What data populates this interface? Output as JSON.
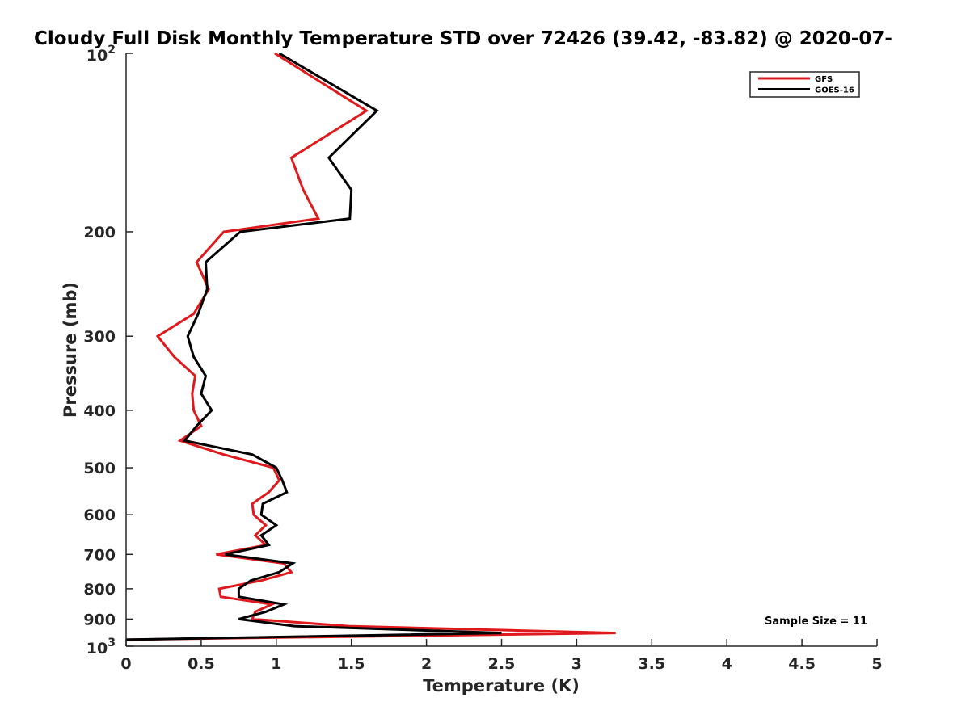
{
  "chart_data": {
    "type": "line",
    "title": "Cloudy Full Disk Monthly Temperature STD over 72426 (39.42, -83.82) @ 2020-07-",
    "xlabel": "Temperature (K)",
    "ylabel": "Pressure (mb)",
    "xlim": [
      0,
      5
    ],
    "ylim": [
      100,
      1000
    ],
    "y_scale": "log",
    "y_reversed": true,
    "grid": false,
    "legend_position": "top-right",
    "x_ticks": [
      {
        "value": 0,
        "label": "0"
      },
      {
        "value": 0.5,
        "label": "0.5"
      },
      {
        "value": 1,
        "label": "1"
      },
      {
        "value": 1.5,
        "label": "1.5"
      },
      {
        "value": 2,
        "label": "2"
      },
      {
        "value": 2.5,
        "label": "2.5"
      },
      {
        "value": 3,
        "label": "3"
      },
      {
        "value": 3.5,
        "label": "3.5"
      },
      {
        "value": 4,
        "label": "4"
      },
      {
        "value": 4.5,
        "label": "4.5"
      },
      {
        "value": 5,
        "label": "5"
      }
    ],
    "y_ticks": [
      {
        "value": 100,
        "base": "10",
        "exp": "2"
      },
      {
        "value": 200,
        "label": "200"
      },
      {
        "value": 300,
        "label": "300"
      },
      {
        "value": 400,
        "label": "400"
      },
      {
        "value": 500,
        "label": "500"
      },
      {
        "value": 600,
        "label": "600"
      },
      {
        "value": 700,
        "label": "700"
      },
      {
        "value": 800,
        "label": "800"
      },
      {
        "value": 900,
        "label": "900"
      },
      {
        "value": 1000,
        "base": "10",
        "exp": "3"
      }
    ],
    "series": [
      {
        "name": "GFS",
        "color": "#e0191c",
        "points": [
          [
            0.99,
            100
          ],
          [
            1.6,
            125
          ],
          [
            1.1,
            150
          ],
          [
            1.18,
            170
          ],
          [
            1.28,
            190
          ],
          [
            0.65,
            200
          ],
          [
            0.47,
            225
          ],
          [
            0.55,
            250
          ],
          [
            0.45,
            275
          ],
          [
            0.21,
            300
          ],
          [
            0.32,
            325
          ],
          [
            0.46,
            350
          ],
          [
            0.44,
            375
          ],
          [
            0.45,
            400
          ],
          [
            0.5,
            425
          ],
          [
            0.36,
            450
          ],
          [
            0.65,
            475
          ],
          [
            0.98,
            500
          ],
          [
            1.02,
            525
          ],
          [
            0.95,
            550
          ],
          [
            0.84,
            575
          ],
          [
            0.85,
            600
          ],
          [
            0.93,
            625
          ],
          [
            0.86,
            650
          ],
          [
            0.93,
            675
          ],
          [
            0.6,
            700
          ],
          [
            1.05,
            725
          ],
          [
            1.1,
            750
          ],
          [
            0.9,
            775
          ],
          [
            0.62,
            800
          ],
          [
            0.63,
            825
          ],
          [
            0.97,
            850
          ],
          [
            0.86,
            875
          ],
          [
            0.84,
            900
          ],
          [
            1.48,
            925
          ],
          [
            3.26,
            950
          ],
          [
            0.0,
            975
          ]
        ]
      },
      {
        "name": "GOES-16",
        "color": "#000000",
        "points": [
          [
            1.02,
            100
          ],
          [
            1.67,
            125
          ],
          [
            1.35,
            150
          ],
          [
            1.5,
            170
          ],
          [
            1.49,
            190
          ],
          [
            0.76,
            200
          ],
          [
            0.53,
            225
          ],
          [
            0.54,
            250
          ],
          [
            0.48,
            275
          ],
          [
            0.41,
            300
          ],
          [
            0.45,
            325
          ],
          [
            0.53,
            350
          ],
          [
            0.5,
            375
          ],
          [
            0.57,
            400
          ],
          [
            0.47,
            425
          ],
          [
            0.39,
            450
          ],
          [
            0.84,
            475
          ],
          [
            1.0,
            500
          ],
          [
            1.04,
            525
          ],
          [
            1.07,
            550
          ],
          [
            0.91,
            575
          ],
          [
            0.9,
            600
          ],
          [
            1.0,
            625
          ],
          [
            0.9,
            650
          ],
          [
            0.95,
            675
          ],
          [
            0.66,
            700
          ],
          [
            1.11,
            725
          ],
          [
            1.02,
            750
          ],
          [
            0.83,
            775
          ],
          [
            0.75,
            800
          ],
          [
            0.75,
            825
          ],
          [
            1.05,
            850
          ],
          [
            0.93,
            875
          ],
          [
            0.75,
            900
          ],
          [
            1.12,
            925
          ],
          [
            2.5,
            950
          ],
          [
            0.0,
            975
          ]
        ]
      }
    ],
    "annotations": [
      {
        "text": "Sample Size = 11",
        "x": 4.3,
        "y": 905
      }
    ]
  }
}
